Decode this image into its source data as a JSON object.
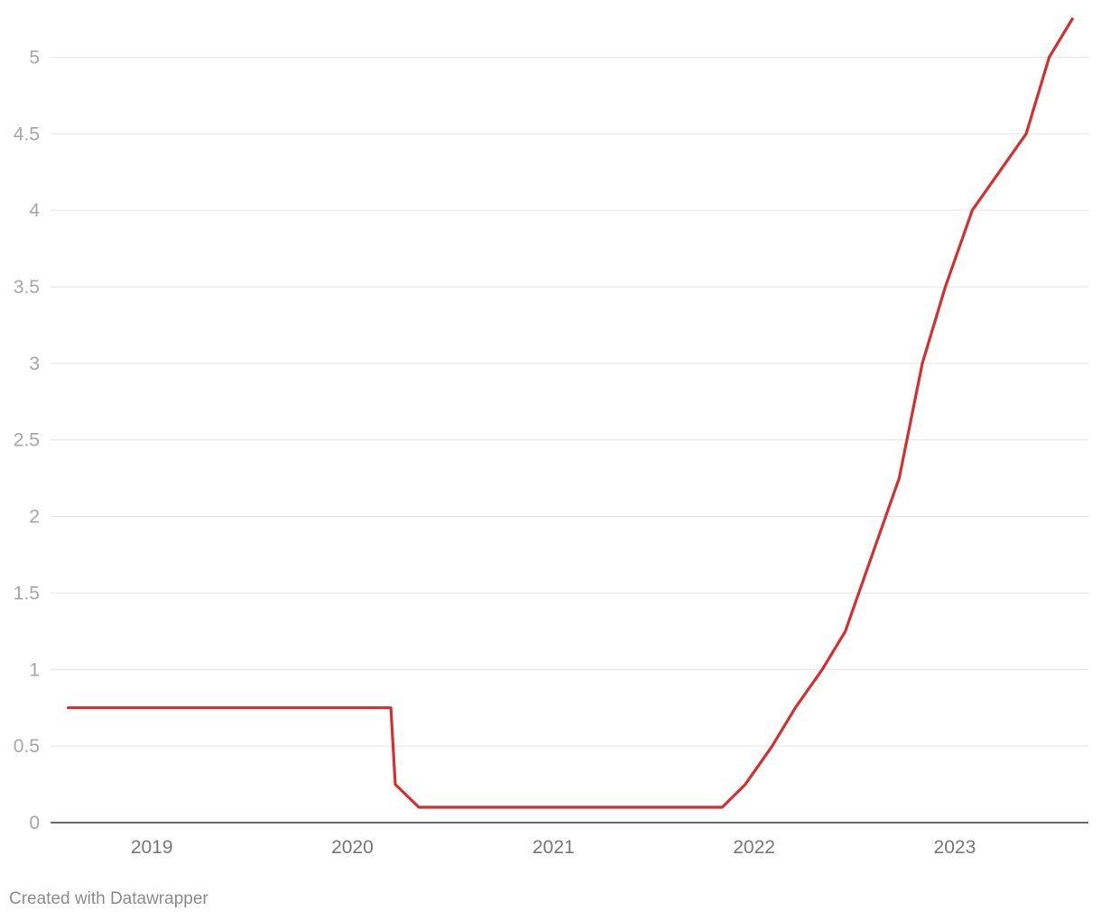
{
  "chart_data": {
    "type": "line",
    "title": "",
    "xlabel": "",
    "ylabel": "",
    "grid": true,
    "legend": "none",
    "xlim": [
      "2018-08-01",
      "2023-08-01"
    ],
    "ylim": [
      0,
      5.25
    ],
    "y_ticks": [
      "0",
      "0.5",
      "1",
      "1.5",
      "2",
      "2.5",
      "3",
      "3.5",
      "4",
      "4.5",
      "5"
    ],
    "x_ticks": [
      {
        "label": "2019",
        "date": "2019-01-01"
      },
      {
        "label": "2020",
        "date": "2020-01-01"
      },
      {
        "label": "2021",
        "date": "2021-01-01"
      },
      {
        "label": "2022",
        "date": "2022-01-01"
      },
      {
        "label": "2023",
        "date": "2023-01-01"
      }
    ],
    "series": [
      {
        "color": "#d62f2f",
        "points": [
          {
            "x": "2018-08-02",
            "y": 0.75
          },
          {
            "x": "2020-03-11",
            "y": 0.75
          },
          {
            "x": "2020-03-19",
            "y": 0.25
          },
          {
            "x": "2020-05-01",
            "y": 0.1
          },
          {
            "x": "2021-11-04",
            "y": 0.1
          },
          {
            "x": "2021-12-16",
            "y": 0.25
          },
          {
            "x": "2022-02-03",
            "y": 0.5
          },
          {
            "x": "2022-03-17",
            "y": 0.75
          },
          {
            "x": "2022-05-05",
            "y": 1.0
          },
          {
            "x": "2022-06-16",
            "y": 1.25
          },
          {
            "x": "2022-08-04",
            "y": 1.75
          },
          {
            "x": "2022-09-22",
            "y": 2.25
          },
          {
            "x": "2022-11-03",
            "y": 3.0
          },
          {
            "x": "2022-12-15",
            "y": 3.5
          },
          {
            "x": "2023-02-02",
            "y": 4.0
          },
          {
            "x": "2023-03-23",
            "y": 4.25
          },
          {
            "x": "2023-05-11",
            "y": 4.5
          },
          {
            "x": "2023-06-22",
            "y": 5.0
          },
          {
            "x": "2023-08-03",
            "y": 5.25
          }
        ]
      }
    ]
  },
  "footer": {
    "credit": "Created with Datawrapper"
  }
}
